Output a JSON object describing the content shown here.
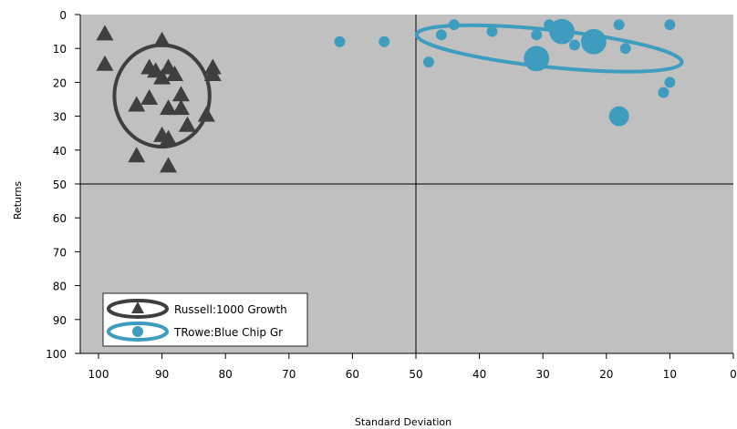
{
  "chart_data": {
    "type": "scatter",
    "xlabel": "Standard Deviation",
    "ylabel": "Returns",
    "xlim": [
      100,
      0
    ],
    "ylim": [
      0,
      100
    ],
    "x_reversed": true,
    "y_reversed": true,
    "x_ticks": [
      "100",
      "90",
      "80",
      "70",
      "60",
      "50",
      "40",
      "30",
      "20",
      "10",
      "0"
    ],
    "y_ticks": [
      "0",
      "10",
      "20",
      "30",
      "40",
      "50",
      "60",
      "70",
      "80",
      "90",
      "100"
    ],
    "quadrant_lines": {
      "x": 50,
      "y": 50
    },
    "grid": false,
    "legend_position": "bottom-left",
    "plot_background": "#c0c0c0",
    "series": [
      {
        "name": "Russell:1000 Growth",
        "marker": "triangle",
        "color": "#3f3f3f",
        "points": [
          {
            "x": 99,
            "y": 6
          },
          {
            "x": 99,
            "y": 15
          },
          {
            "x": 90,
            "y": 8
          },
          {
            "x": 92,
            "y": 16
          },
          {
            "x": 91,
            "y": 17
          },
          {
            "x": 90,
            "y": 19
          },
          {
            "x": 89,
            "y": 16
          },
          {
            "x": 88,
            "y": 18
          },
          {
            "x": 87,
            "y": 24
          },
          {
            "x": 92,
            "y": 25
          },
          {
            "x": 94,
            "y": 27
          },
          {
            "x": 89,
            "y": 28
          },
          {
            "x": 87,
            "y": 28
          },
          {
            "x": 86,
            "y": 33
          },
          {
            "x": 83,
            "y": 30
          },
          {
            "x": 90,
            "y": 36
          },
          {
            "x": 89,
            "y": 37
          },
          {
            "x": 94,
            "y": 42
          },
          {
            "x": 89,
            "y": 45
          },
          {
            "x": 82,
            "y": 16
          },
          {
            "x": 82,
            "y": 18
          }
        ],
        "ellipse": {
          "cx": 90,
          "cy": 24,
          "rx": 7.5,
          "ry": 15
        }
      },
      {
        "name": "TRowe:Blue Chip Gr",
        "marker": "circle",
        "color": "#3e9cbf",
        "points": [
          {
            "x": 62,
            "y": 8,
            "size": 1
          },
          {
            "x": 55,
            "y": 8,
            "size": 1
          },
          {
            "x": 48,
            "y": 14,
            "size": 1
          },
          {
            "x": 46,
            "y": 6,
            "size": 1
          },
          {
            "x": 44,
            "y": 3,
            "size": 1
          },
          {
            "x": 38,
            "y": 5,
            "size": 1
          },
          {
            "x": 31,
            "y": 6,
            "size": 1
          },
          {
            "x": 29,
            "y": 3,
            "size": 1
          },
          {
            "x": 27,
            "y": 5,
            "size": 2
          },
          {
            "x": 25,
            "y": 9,
            "size": 1
          },
          {
            "x": 22,
            "y": 8,
            "size": 2
          },
          {
            "x": 18,
            "y": 3,
            "size": 1
          },
          {
            "x": 17,
            "y": 10,
            "size": 1
          },
          {
            "x": 10,
            "y": 3,
            "size": 1
          },
          {
            "x": 31,
            "y": 13,
            "size": 2
          },
          {
            "x": 10,
            "y": 20,
            "size": 1
          },
          {
            "x": 11,
            "y": 23,
            "size": 1
          },
          {
            "x": 18,
            "y": 30,
            "size": 1.5
          }
        ],
        "ellipse": {
          "cx": 29,
          "cy": 10,
          "rx": 21,
          "ry": 5.5,
          "rotate": 6
        }
      }
    ]
  }
}
